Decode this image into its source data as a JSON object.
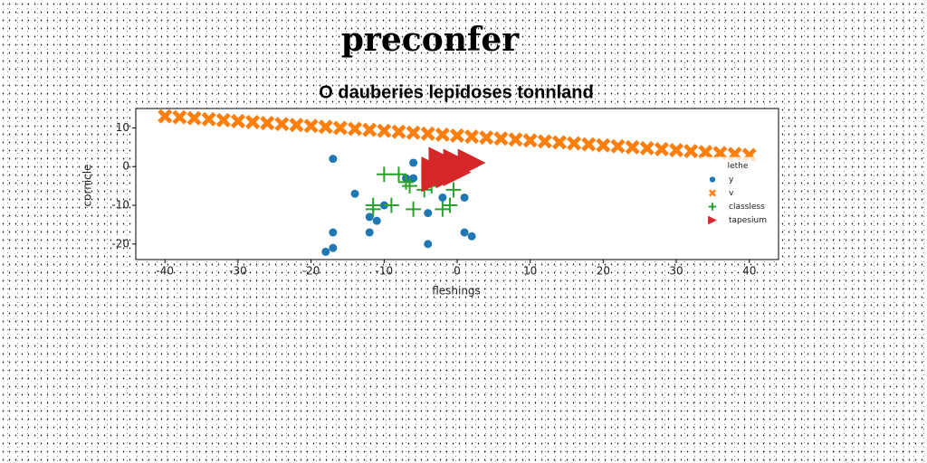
{
  "page_title": "preconfer",
  "chart_data": {
    "type": "scatter",
    "title": "O dauberies lepidoses tonnland",
    "xlabel": "fleshings",
    "ylabel": "cornicle",
    "xlim": [
      -44,
      44
    ],
    "ylim": [
      -24,
      15
    ],
    "xticks": [
      -40,
      -30,
      -20,
      -10,
      0,
      10,
      20,
      30,
      40
    ],
    "yticks": [
      -20,
      -10,
      0,
      10
    ],
    "legend_title": "lethe",
    "legend_loc": "center right",
    "series": [
      {
        "name": "y",
        "color": "#1f77b4",
        "marker": "o",
        "x": [
          -17,
          -14,
          -17,
          -17,
          -18,
          -12,
          -11,
          -12,
          -10,
          -6,
          -6,
          -4,
          -2,
          1,
          -4,
          1,
          2,
          -7
        ],
        "values": [
          2,
          -7,
          -17,
          -21,
          -22,
          -13,
          -14,
          -17,
          -10,
          1,
          -3,
          -12,
          -8,
          -8,
          -20,
          -17,
          -18,
          -3
        ]
      },
      {
        "name": "v",
        "color": "#ff7f0e",
        "marker": "X",
        "x": [
          -40,
          -38,
          -36,
          -34,
          -32,
          -30,
          -28,
          -26,
          -24,
          -22,
          -20,
          -18,
          -16,
          -14,
          -12,
          -10,
          -8,
          -6,
          -4,
          -2,
          0,
          2,
          4,
          6,
          8,
          10,
          12,
          14,
          16,
          18,
          20,
          22,
          24,
          26,
          28,
          30,
          32,
          34,
          36,
          38,
          40
        ],
        "values": [
          13,
          12.75,
          12.5,
          12.25,
          12,
          11.75,
          11.5,
          11.25,
          11,
          10.75,
          10.5,
          10.25,
          10,
          9.75,
          9.5,
          9.25,
          9,
          8.75,
          8.5,
          8.25,
          8,
          7.75,
          7.5,
          7.25,
          7,
          6.75,
          6.5,
          6.25,
          6,
          5.75,
          5.5,
          5.25,
          5,
          4.75,
          4.5,
          4.25,
          4,
          3.75,
          3.5,
          3.25,
          3
        ]
      },
      {
        "name": "classless",
        "color": "#2ca02c",
        "marker": "+",
        "x": [
          -10,
          -8,
          -7,
          -4.5,
          -3.5,
          -11.5,
          -11.5,
          -9,
          -6,
          -2,
          -1,
          -0.5,
          -6.5
        ],
        "values": [
          -2,
          -2,
          -4,
          -6,
          -5,
          -10,
          -11,
          -10,
          -11,
          -11,
          -10,
          -6,
          -5
        ]
      },
      {
        "name": "tapesium",
        "color": "#d62728",
        "marker": ">",
        "x": [
          -3,
          -2,
          -1,
          0,
          1,
          2,
          -3,
          0
        ],
        "values": [
          -1,
          1.5,
          -2,
          1,
          0,
          1,
          -3,
          -1.5
        ]
      }
    ]
  }
}
